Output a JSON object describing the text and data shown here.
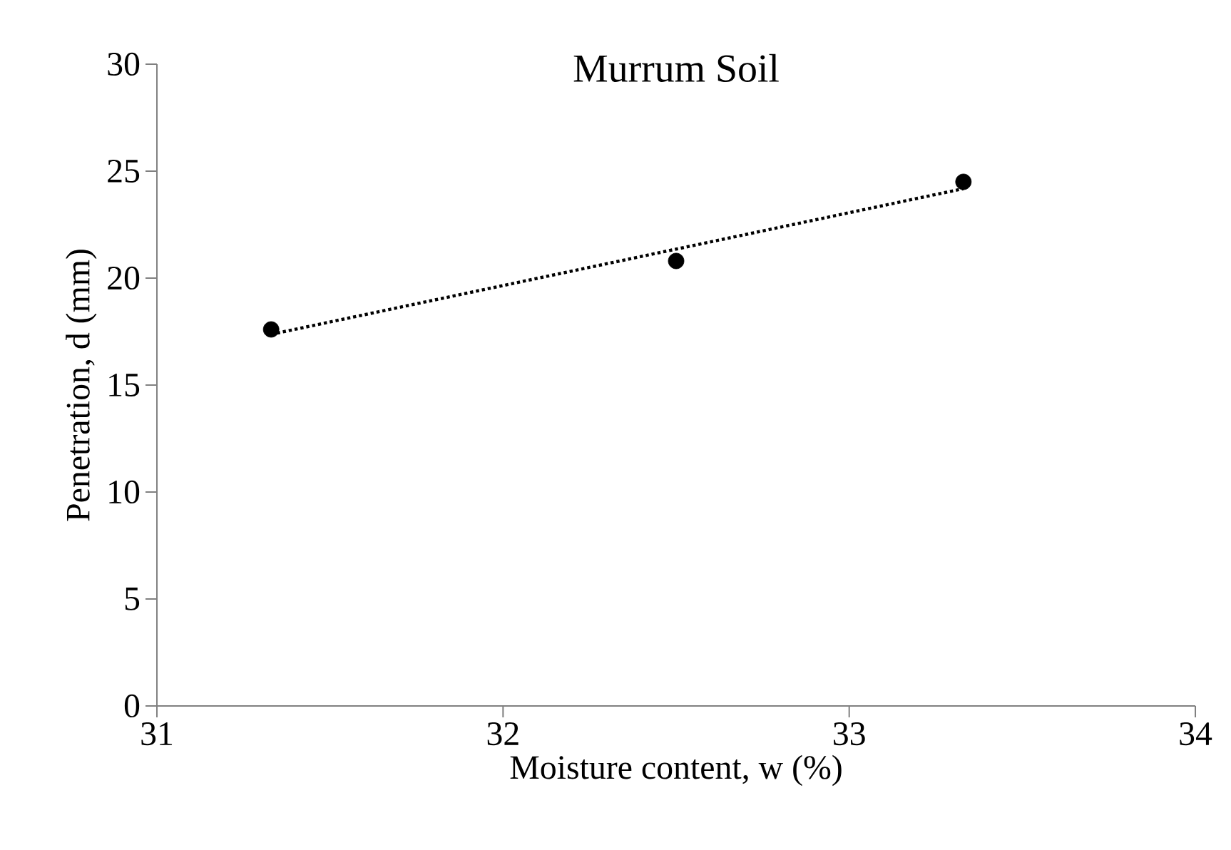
{
  "chart_data": {
    "type": "scatter",
    "title": "Murrum Soil",
    "xlabel": "Moisture content, w (%)",
    "ylabel": "Penetration, d (mm)",
    "xlim": [
      31,
      34
    ],
    "ylim": [
      0,
      30
    ],
    "xticks": [
      31,
      32,
      33,
      34
    ],
    "yticks": [
      0,
      5,
      10,
      15,
      20,
      25,
      30
    ],
    "grid": false,
    "series": [
      {
        "color": "#000000",
        "marker": "circle",
        "x": [
          31.33,
          32.5,
          33.33
        ],
        "values": [
          17.6,
          20.8,
          24.5
        ]
      },
      {
        "type": "line",
        "color": "#000000",
        "line_style": "dotted",
        "marker": "none",
        "x": [
          31.33,
          33.33
        ],
        "values": [
          17.37,
          24.18
        ]
      }
    ]
  }
}
